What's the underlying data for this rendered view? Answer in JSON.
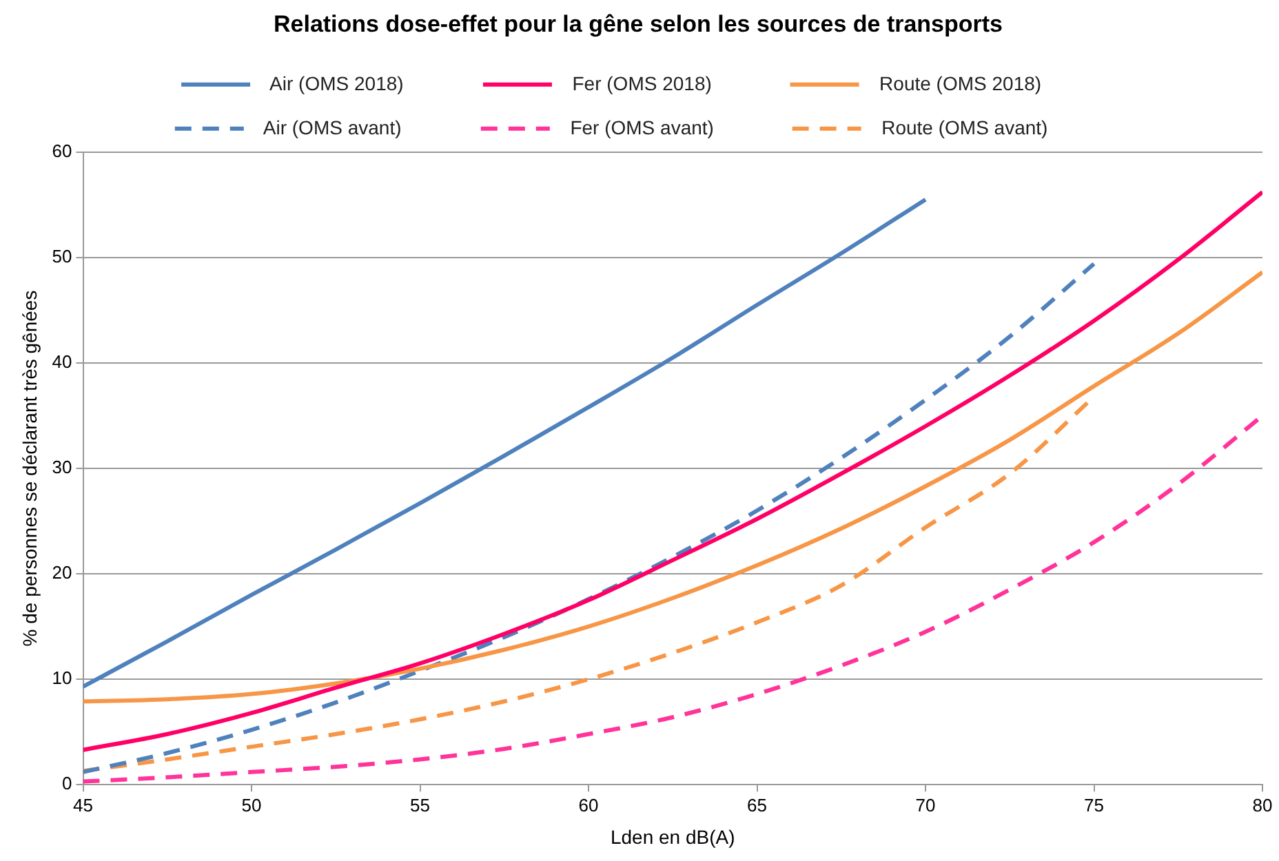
{
  "chart_data": {
    "type": "line",
    "title": "Relations dose-effet pour la gêne selon les sources de transports",
    "xlabel": "Lden en dB(A)",
    "ylabel": "% de personnes se déclarant très gênées",
    "xlim": [
      45,
      80
    ],
    "xticks": [
      45,
      50,
      55,
      60,
      65,
      70,
      75,
      80
    ],
    "ylim": [
      0,
      60
    ],
    "yticks": [
      0,
      10,
      20,
      30,
      40,
      50,
      60
    ],
    "grid": "y",
    "legend": "top",
    "marker": "none",
    "x": [
      45,
      47.5,
      50,
      52.5,
      55,
      57.5,
      60,
      62.5,
      65,
      67.5,
      70,
      72.5,
      75,
      77.5,
      80
    ],
    "series": [
      {
        "name": "Air (OMS 2018)",
        "color": "#4f81bd",
        "line_style": "solid",
        "values": [
          9.3,
          13.6,
          18,
          22.3,
          26.7,
          31.2,
          35.8,
          40.5,
          45.5,
          50.4,
          55.5,
          null,
          null,
          null,
          null
        ]
      },
      {
        "name": "Fer (OMS 2018)",
        "color": "#ff0066",
        "line_style": "solid",
        "values": [
          3.3,
          4.8,
          6.8,
          9.2,
          11.5,
          14.3,
          17.5,
          21.3,
          25.2,
          29.5,
          34,
          38.8,
          44,
          49.8,
          56.2
        ]
      },
      {
        "name": "Route (OMS 2018)",
        "color": "#f79646",
        "line_style": "solid",
        "values": [
          7.9,
          8.1,
          8.6,
          9.6,
          11,
          12.8,
          15,
          17.7,
          20.8,
          24.3,
          28.3,
          32.7,
          37.8,
          42.8,
          48.6
        ]
      },
      {
        "name": "Air (OMS avant)",
        "color": "#4f81bd",
        "line_style": "dashed",
        "values": [
          1.2,
          3,
          5.2,
          7.8,
          10.8,
          14,
          17.6,
          21.6,
          26,
          31,
          36.5,
          42.5,
          49.4,
          null,
          null
        ]
      },
      {
        "name": "Fer (OMS avant)",
        "color": "#ff3399",
        "line_style": "dashed",
        "values": [
          0.3,
          0.7,
          1.2,
          1.7,
          2.4,
          3.4,
          4.8,
          6.4,
          8.6,
          11.3,
          14.5,
          18.5,
          23,
          28.5,
          35
        ]
      },
      {
        "name": "Route (OMS avant)",
        "color": "#f79646",
        "line_style": "dashed",
        "values": [
          1.3,
          2.4,
          3.6,
          4.8,
          6.2,
          7.9,
          10,
          12.5,
          15.4,
          18.9,
          24.4,
          29.5,
          36.8,
          null,
          null
        ]
      }
    ]
  }
}
